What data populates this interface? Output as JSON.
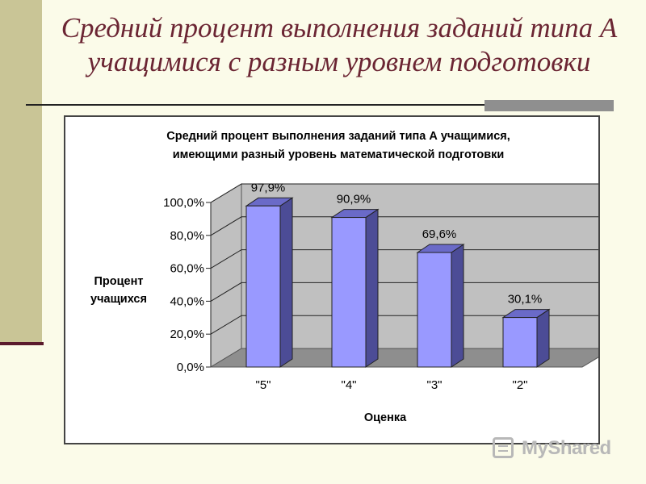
{
  "slide": {
    "title": "Средний процент выполнения заданий типа А учащимися с разным уровнем подготовки"
  },
  "chart_data": {
    "type": "bar",
    "title_lines": [
      "Средний процент выполнения заданий типа А учащимися,",
      "имеющими разный уровень математической подготовки"
    ],
    "xlabel": "Оценка",
    "ylabel_lines": [
      "Процент",
      "учащихся"
    ],
    "categories": [
      "\"5\"",
      "\"4\"",
      "\"3\"",
      "\"2\""
    ],
    "values": [
      97.9,
      90.9,
      69.6,
      30.1
    ],
    "value_labels": [
      "97,9%",
      "90,9%",
      "69,6%",
      "30,1%"
    ],
    "ylim": [
      0,
      100
    ],
    "yticks": [
      0,
      20,
      40,
      60,
      80,
      100
    ],
    "ytick_labels": [
      "0,0%",
      "20,0%",
      "40,0%",
      "60,0%",
      "80,0%",
      "100,0%"
    ],
    "grid": true,
    "legend": "none",
    "bar_color": "#9999ff",
    "wall_color": "#c0c0c0"
  },
  "watermark": {
    "text": "MyShared"
  }
}
